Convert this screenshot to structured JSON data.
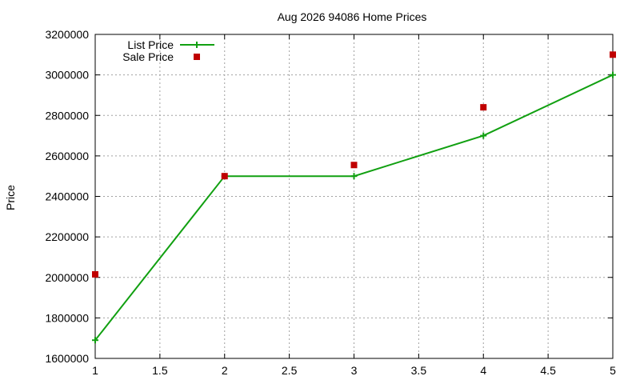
{
  "chart_data": {
    "type": "line",
    "title": "Aug 2026 94086 Home Prices",
    "xlabel": "",
    "ylabel": "Price",
    "xlim": [
      1,
      5
    ],
    "ylim": [
      1600000,
      3200000
    ],
    "x_ticks": [
      "1",
      "1.5",
      "2",
      "2.5",
      "3",
      "3.5",
      "4",
      "4.5",
      "5"
    ],
    "y_ticks": [
      "1600000",
      "1800000",
      "2000000",
      "2200000",
      "2400000",
      "2600000",
      "2800000",
      "3000000",
      "3200000"
    ],
    "x_tick_values": [
      1,
      1.5,
      2,
      2.5,
      3,
      3.5,
      4,
      4.5,
      5
    ],
    "y_tick_values": [
      1600000,
      1800000,
      2000000,
      2200000,
      2400000,
      2600000,
      2800000,
      3000000,
      3200000
    ],
    "grid": true,
    "legend_position": "top-left",
    "series": [
      {
        "name": "List Price",
        "style": "line-with-plus-markers",
        "color": "#11a011",
        "x": [
          1,
          2,
          3,
          4,
          5
        ],
        "values": [
          1690000,
          2500000,
          2500000,
          2700000,
          3000000
        ]
      },
      {
        "name": "Sale Price",
        "style": "square-markers",
        "color": "#c00000",
        "x": [
          1,
          2,
          3,
          4,
          5
        ],
        "values": [
          2015000,
          2500000,
          2555000,
          2840000,
          3100000
        ]
      }
    ]
  }
}
